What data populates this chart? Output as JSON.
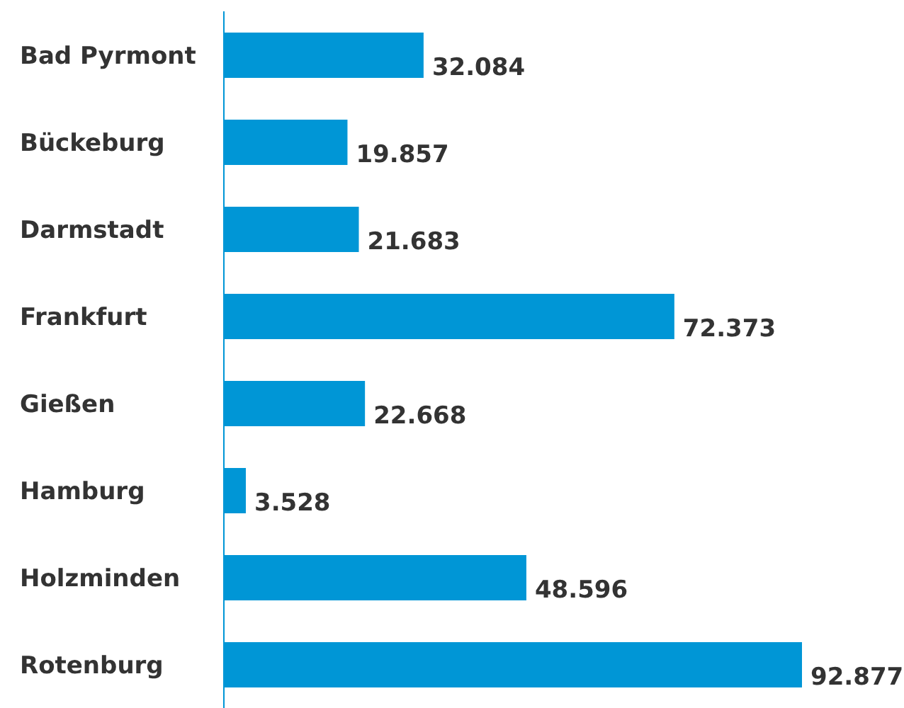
{
  "chart_data": {
    "type": "bar",
    "orientation": "horizontal",
    "categories": [
      "Bad Pyrmont",
      "Bückeburg",
      "Darmstadt",
      "Frankfurt",
      "Gießen",
      "Hamburg",
      "Holzminden",
      "Rotenburg"
    ],
    "values": [
      32084,
      19857,
      21683,
      72373,
      22668,
      3528,
      48596,
      92877
    ],
    "value_labels": [
      "32.084",
      "19.857",
      "21.683",
      "72.373",
      "22.668",
      "3.528",
      "48.596",
      "92.877"
    ],
    "color": "#0096d6",
    "grid": false,
    "legend": false
  }
}
